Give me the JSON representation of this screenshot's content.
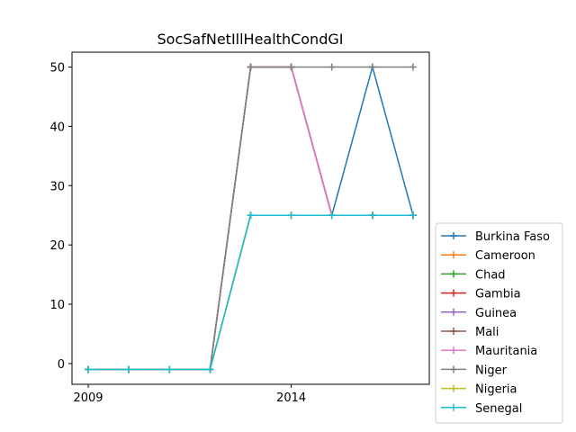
{
  "chart_data": {
    "type": "line",
    "title": "SocSafNetIllHealthCondGI",
    "xlabel": "",
    "ylabel": "",
    "x": [
      2009,
      2010,
      2011,
      2012,
      2013,
      2014,
      2015,
      2016,
      2017
    ],
    "xlim": [
      2008.6,
      2017.4
    ],
    "ylim": [
      -3.5,
      52.5
    ],
    "xticks": [
      2009,
      2014
    ],
    "yticks": [
      0,
      10,
      20,
      30,
      40,
      50
    ],
    "grid": false,
    "legend_position": "right",
    "marker": "+",
    "series": [
      {
        "name": "Burkina Faso",
        "color": "#1f77b4",
        "values": [
          -1,
          -1,
          -1,
          -1,
          50,
          50,
          25,
          50,
          25
        ]
      },
      {
        "name": "Cameroon",
        "color": "#ff7f0e",
        "values": [
          -1,
          -1,
          -1,
          -1,
          25,
          25,
          25,
          25,
          25
        ]
      },
      {
        "name": "Chad",
        "color": "#2ca02c",
        "values": [
          -1,
          -1,
          -1,
          -1,
          25,
          25,
          25,
          25,
          25
        ]
      },
      {
        "name": "Gambia",
        "color": "#d62728",
        "values": [
          -1,
          -1,
          -1,
          -1,
          50,
          50,
          25,
          25,
          25
        ]
      },
      {
        "name": "Guinea",
        "color": "#9467bd",
        "values": [
          -1,
          -1,
          -1,
          -1,
          50,
          50,
          25,
          25,
          25
        ]
      },
      {
        "name": "Mali",
        "color": "#8c564b",
        "values": [
          -1,
          -1,
          -1,
          -1,
          50,
          50,
          25,
          25,
          25
        ]
      },
      {
        "name": "Mauritania",
        "color": "#e377c2",
        "values": [
          -1,
          -1,
          -1,
          -1,
          50,
          50,
          25,
          25,
          25
        ]
      },
      {
        "name": "Niger",
        "color": "#7f7f7f",
        "values": [
          -1,
          -1,
          -1,
          -1,
          50,
          50,
          50,
          50,
          50
        ]
      },
      {
        "name": "Nigeria",
        "color": "#bcbd22",
        "values": [
          -1,
          -1,
          -1,
          -1,
          25,
          25,
          25,
          25,
          25
        ]
      },
      {
        "name": "Senegal",
        "color": "#17becf",
        "values": [
          -1,
          -1,
          -1,
          -1,
          25,
          25,
          25,
          25,
          25
        ]
      }
    ]
  }
}
